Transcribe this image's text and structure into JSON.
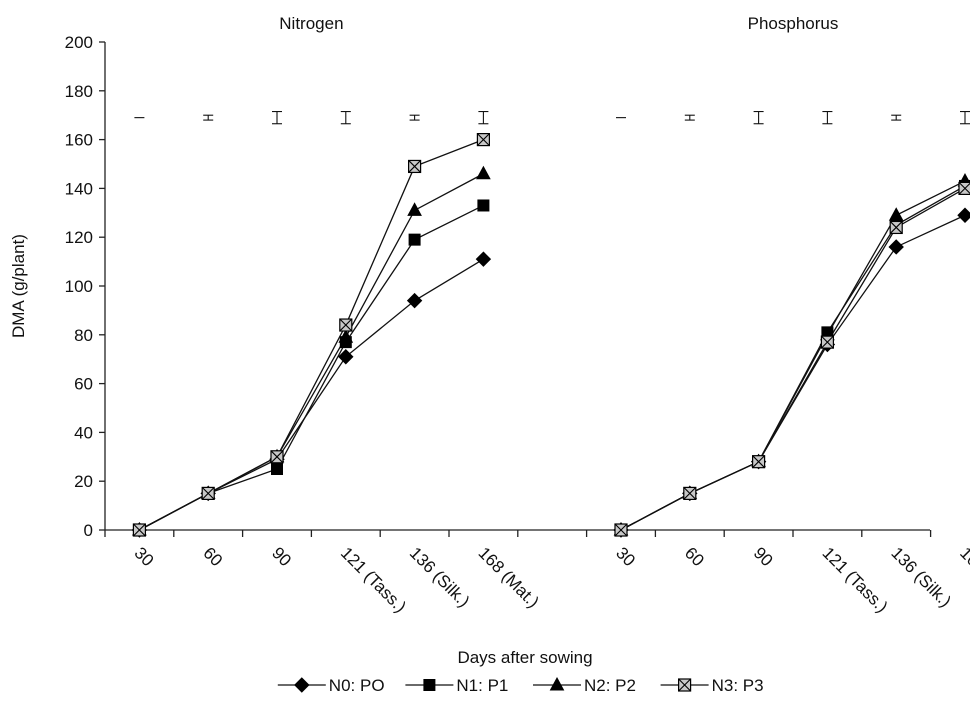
{
  "chart_data": {
    "type": "line",
    "xlabel": "Days after sowing",
    "ylabel": "DMA (g/plant)",
    "ylim": [
      0,
      200
    ],
    "yticks": [
      0,
      20,
      40,
      60,
      80,
      100,
      120,
      140,
      160,
      180,
      200
    ],
    "categories": [
      "30",
      "60",
      "90",
      "121 (Tass.)",
      "136 (Silk.)",
      "168 (Mat.)"
    ],
    "legend": {
      "placement": "bottom"
    },
    "series_styles": [
      {
        "marker": "diamond",
        "fill": "#000000"
      },
      {
        "marker": "square",
        "fill": "#000000"
      },
      {
        "marker": "triangle",
        "fill": "#000000"
      },
      {
        "marker": "square-x",
        "fill": "#c8c8c8"
      }
    ],
    "legend_labels": [
      "N0: PO",
      "N1: P1",
      "N2: P2",
      "N3: P3"
    ],
    "panels": [
      {
        "title": "Nitrogen",
        "series": [
          {
            "name": "N0: PO",
            "values": [
              0,
              15,
              29,
              71,
              94,
              111
            ]
          },
          {
            "name": "N1: P1",
            "values": [
              0,
              15,
              25,
              77,
              119,
              133
            ]
          },
          {
            "name": "N2: P2",
            "values": [
              0,
              15,
              30,
              79,
              131,
              146
            ]
          },
          {
            "name": "N3: P3",
            "values": [
              0,
              15,
              30,
              84,
              149,
              160
            ]
          }
        ],
        "error_bars": {
          "center": 169,
          "half_widths": [
            0,
            1,
            2.5,
            2.5,
            1,
            2.5
          ]
        }
      },
      {
        "title": "Phosphorus",
        "series": [
          {
            "name": "N0: PO",
            "values": [
              0,
              15,
              28,
              76,
              116,
              129
            ]
          },
          {
            "name": "N1: P1",
            "values": [
              0,
              15,
              28,
              81,
              125,
              141
            ]
          },
          {
            "name": "N2: P2",
            "values": [
              0,
              15,
              28,
              80,
              129,
              143
            ]
          },
          {
            "name": "N3: P3",
            "values": [
              0,
              15,
              28,
              77,
              124,
              140
            ]
          }
        ],
        "error_bars": {
          "center": 169,
          "half_widths": [
            0,
            1,
            2.5,
            2.5,
            1,
            2.5
          ]
        }
      }
    ]
  }
}
